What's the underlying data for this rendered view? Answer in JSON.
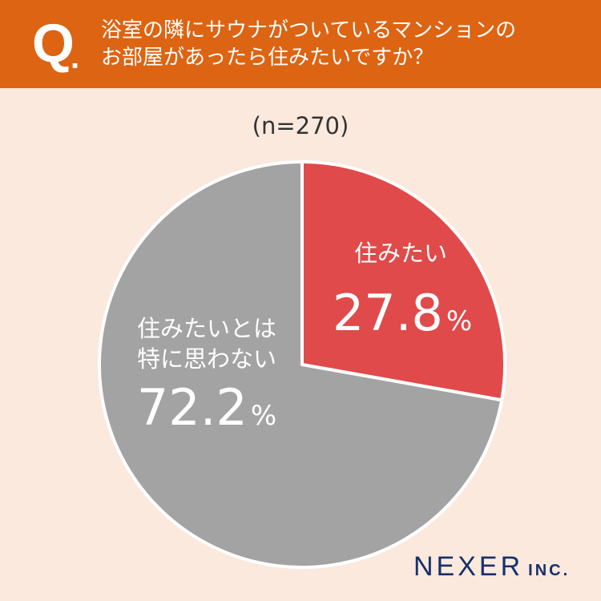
{
  "header": {
    "q_mark": "Q",
    "q_dot": ".",
    "question_line1": "浴室の隣にサウナがついているマンションの",
    "question_line2": "お部屋があったら住みたいですか？"
  },
  "sample_size": "(n=270)",
  "chart_data": {
    "type": "pie",
    "slices": [
      {
        "label_lines": [
          "住みたい"
        ],
        "value": 27.8,
        "value_text": "27.8",
        "unit": "%",
        "color": "#e04a4a"
      },
      {
        "label_lines": [
          "住みたいとは",
          "特に思わない"
        ],
        "value": 72.2,
        "value_text": "72.2",
        "unit": "%",
        "color": "#a3a3a3"
      }
    ]
  },
  "logo": {
    "main": "NEXER",
    "sub": "INC."
  },
  "colors": {
    "header": "#dc6413",
    "background": "#fbe9dd",
    "logo": "#16306b"
  }
}
